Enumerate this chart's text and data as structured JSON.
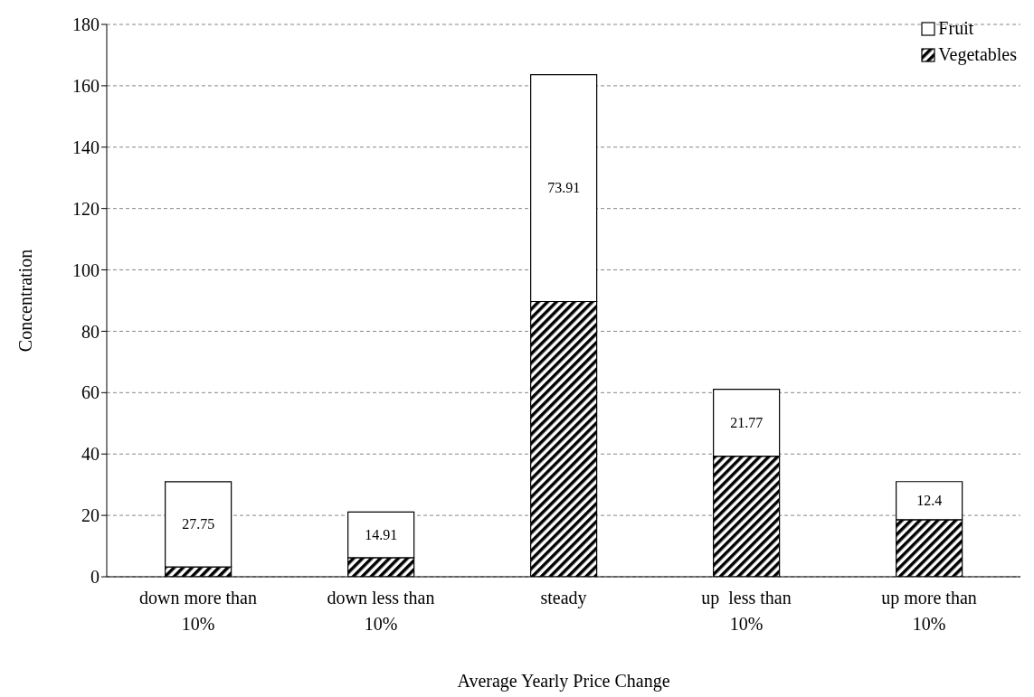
{
  "chart_data": {
    "type": "bar",
    "stacked": true,
    "xlabel": "Average Yearly Price Change",
    "ylabel": "Concentration",
    "categories": [
      "down more than 10%",
      "down less than 10%",
      "steady",
      "up  less than 10%",
      "up more than 10%"
    ],
    "series": [
      {
        "name": "Vegetables",
        "color": "#000000",
        "values": [
          3.2,
          6.2,
          89.7,
          39.3,
          18.6
        ]
      },
      {
        "name": "Fruit",
        "color": "#ffffff",
        "values": [
          27.75,
          14.91,
          73.91,
          21.77,
          12.4
        ],
        "value_labels": [
          "27.75",
          "14.91",
          "73.91",
          "21.77",
          "12.4"
        ]
      }
    ],
    "ylim": [
      0,
      180
    ],
    "yticks": [
      0,
      20,
      40,
      60,
      80,
      100,
      120,
      140,
      160,
      180
    ],
    "grid": "y",
    "legend": "top right"
  }
}
